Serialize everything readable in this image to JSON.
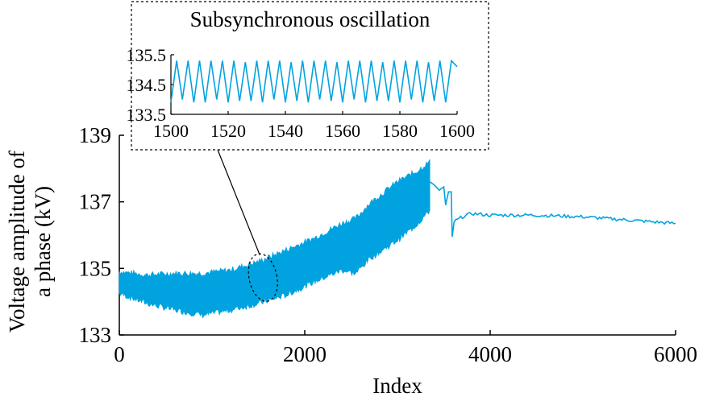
{
  "chart_data": [
    {
      "id": "main",
      "type": "line",
      "xlabel": "Index",
      "ylabel_lines": [
        "Voltage amplitude of",
        "a phase (kV)"
      ],
      "xlim": [
        0,
        6000
      ],
      "ylim": [
        133,
        139
      ],
      "xticks": [
        0,
        2000,
        4000,
        6000
      ],
      "xtick_labels": [
        "0",
        "2000",
        "4000",
        "6000"
      ],
      "yticks": [
        133,
        135,
        137,
        139
      ],
      "ytick_labels": [
        "133",
        "135",
        "137",
        "139"
      ],
      "grid": false,
      "series_color": "#00a3e0",
      "envelope": [
        {
          "x": 0,
          "low": 134.25,
          "high": 134.9
        },
        {
          "x": 300,
          "low": 133.95,
          "high": 134.8
        },
        {
          "x": 600,
          "low": 133.75,
          "high": 134.85
        },
        {
          "x": 900,
          "low": 133.6,
          "high": 134.85
        },
        {
          "x": 1200,
          "low": 133.75,
          "high": 134.95
        },
        {
          "x": 1500,
          "low": 133.95,
          "high": 135.2
        },
        {
          "x": 1800,
          "low": 134.2,
          "high": 135.55
        },
        {
          "x": 2100,
          "low": 134.6,
          "high": 135.9
        },
        {
          "x": 2400,
          "low": 134.95,
          "high": 136.35
        },
        {
          "x": 2550,
          "low": 134.85,
          "high": 136.5
        },
        {
          "x": 2700,
          "low": 135.3,
          "high": 136.95
        },
        {
          "x": 3000,
          "low": 135.85,
          "high": 137.6
        },
        {
          "x": 3200,
          "low": 136.3,
          "high": 137.9
        },
        {
          "x": 3350,
          "low": 136.75,
          "high": 138.2
        }
      ],
      "line": [
        {
          "x": 3350,
          "y": 137.6
        },
        {
          "x": 3400,
          "y": 137.5
        },
        {
          "x": 3450,
          "y": 137.35
        },
        {
          "x": 3500,
          "y": 137.45
        },
        {
          "x": 3520,
          "y": 136.9
        },
        {
          "x": 3550,
          "y": 137.3
        },
        {
          "x": 3580,
          "y": 137.3
        },
        {
          "x": 3590,
          "y": 135.95
        },
        {
          "x": 3610,
          "y": 136.4
        },
        {
          "x": 3700,
          "y": 136.55
        },
        {
          "x": 3800,
          "y": 136.65
        },
        {
          "x": 4000,
          "y": 136.6
        },
        {
          "x": 4500,
          "y": 136.6
        },
        {
          "x": 5000,
          "y": 136.55
        },
        {
          "x": 5500,
          "y": 136.45
        },
        {
          "x": 6000,
          "y": 136.35
        }
      ],
      "highlight_region": {
        "x_range": [
          1400,
          1700
        ],
        "y_range": [
          134.0,
          135.45
        ]
      }
    },
    {
      "id": "inset",
      "type": "line",
      "title": "Subsynchronous oscillation",
      "xlim": [
        1500,
        1600
      ],
      "ylim": [
        133.5,
        135.5
      ],
      "xticks": [
        1500,
        1520,
        1540,
        1560,
        1580,
        1600
      ],
      "xtick_labels": [
        "1500",
        "1520",
        "1540",
        "1560",
        "1580",
        "1600"
      ],
      "yticks": [
        133.5,
        134.5,
        135.5
      ],
      "ytick_labels": [
        "133.5",
        "134.5",
        "135.5"
      ],
      "series_color": "#00a3e0",
      "series": {
        "x": [
          1500,
          1502,
          1504,
          1506,
          1508,
          1510,
          1512,
          1514,
          1516,
          1518,
          1520,
          1522,
          1524,
          1526,
          1528,
          1530,
          1532,
          1534,
          1536,
          1538,
          1540,
          1542,
          1544,
          1546,
          1548,
          1550,
          1552,
          1554,
          1556,
          1558,
          1560,
          1562,
          1564,
          1566,
          1568,
          1570,
          1572,
          1574,
          1576,
          1578,
          1580,
          1582,
          1584,
          1586,
          1588,
          1590,
          1592,
          1594,
          1596,
          1598,
          1600
        ],
        "y": [
          133.9,
          135.3,
          134.0,
          135.3,
          133.9,
          135.3,
          133.9,
          135.3,
          134.0,
          135.3,
          133.9,
          135.3,
          133.95,
          135.25,
          133.95,
          135.3,
          133.9,
          135.3,
          134.0,
          135.3,
          133.9,
          135.25,
          133.95,
          135.3,
          133.9,
          135.3,
          134.0,
          135.3,
          133.95,
          135.25,
          133.9,
          135.3,
          134.0,
          135.3,
          133.9,
          135.3,
          133.95,
          135.25,
          133.95,
          135.3,
          133.9,
          135.3,
          134.0,
          135.3,
          133.9,
          135.25,
          133.95,
          135.3,
          133.9,
          135.3,
          135.1
        ]
      }
    }
  ]
}
